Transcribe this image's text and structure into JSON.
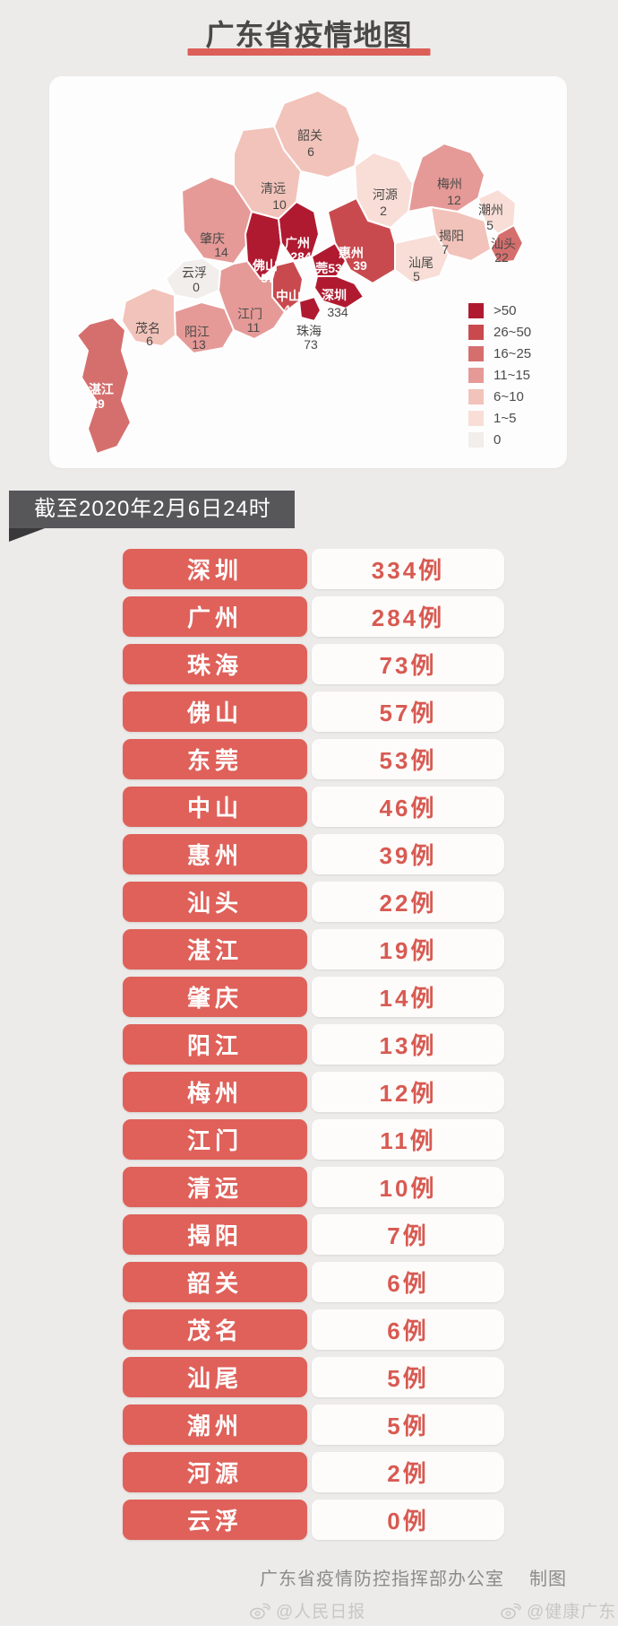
{
  "title": "广东省疫情地图",
  "banner": {
    "text": "截至2020年2月6日24时"
  },
  "map": {
    "legend": [
      {
        "label": ">50",
        "color": "#b01a30"
      },
      {
        "label": "26~50",
        "color": "#c94a4e"
      },
      {
        "label": "16~25",
        "color": "#d56f6e"
      },
      {
        "label": "11~15",
        "color": "#e59a97"
      },
      {
        "label": "6~10",
        "color": "#f2c3ba"
      },
      {
        "label": "1~5",
        "color": "#f8ded7"
      },
      {
        "label": "0",
        "color": "#f1eeeb"
      }
    ],
    "regions": [
      {
        "name": "韶关",
        "value": "6",
        "bucket": "6~10",
        "name_color": "dark",
        "value_color": "dark"
      },
      {
        "name": "清远",
        "value": "10",
        "bucket": "6~10",
        "name_color": "dark",
        "value_color": "dark"
      },
      {
        "name": "肇庆",
        "value": "14",
        "bucket": "11~15",
        "name_color": "dark",
        "value_color": "dark"
      },
      {
        "name": "云浮",
        "value": "0",
        "bucket": "0",
        "name_color": "dark",
        "value_color": "dark"
      },
      {
        "name": "河源",
        "value": "2",
        "bucket": "1~5",
        "name_color": "dark",
        "value_color": "dark"
      },
      {
        "name": "梅州",
        "value": "12",
        "bucket": "11~15",
        "name_color": "dark",
        "value_color": "dark"
      },
      {
        "name": "潮州",
        "value": "5",
        "bucket": "1~5",
        "name_color": "dark",
        "value_color": "dark"
      },
      {
        "name": "汕头",
        "value": "22",
        "bucket": "16~25",
        "name_color": "dark",
        "value_color": "dark"
      },
      {
        "name": "揭阳",
        "value": "7",
        "bucket": "6~10",
        "name_color": "dark",
        "value_color": "dark"
      },
      {
        "name": "汕尾",
        "value": "5",
        "bucket": "1~5",
        "name_color": "dark",
        "value_color": "dark"
      },
      {
        "name": "惠州",
        "value": "39",
        "bucket": "26~50",
        "name_color": "white",
        "value_color": "white"
      },
      {
        "name": "茂名",
        "value": "6",
        "bucket": "6~10",
        "name_color": "dark",
        "value_color": "dark"
      },
      {
        "name": "阳江",
        "value": "13",
        "bucket": "11~15",
        "name_color": "dark",
        "value_color": "dark"
      },
      {
        "name": "湛江",
        "value": "19",
        "bucket": "16~25",
        "name_color": "white",
        "value_color": "white"
      },
      {
        "name": "江门",
        "value": "11",
        "bucket": "11~15",
        "name_color": "dark",
        "value_color": "dark"
      },
      {
        "name": "佛山",
        "value": "57",
        "bucket": ">50",
        "name_color": "white",
        "value_color": "white"
      },
      {
        "name": "广州",
        "value": "284",
        "bucket": ">50",
        "name_color": "white",
        "value_color": "white"
      },
      {
        "name": "东莞",
        "value": "53",
        "bucket": ">50",
        "name_color": "white",
        "value_color": "white"
      },
      {
        "name": "中山",
        "value": "46",
        "bucket": "26~50",
        "name_color": "white",
        "value_color": "white"
      },
      {
        "name": "深圳",
        "value": "334",
        "bucket": ">50",
        "name_color": "white",
        "value_color": "dark"
      },
      {
        "name": "珠海",
        "value": "73",
        "bucket": ">50",
        "name_color": "dark",
        "value_color": "dark"
      }
    ]
  },
  "table": {
    "rows": [
      {
        "city": "深圳",
        "cases": "334例"
      },
      {
        "city": "广州",
        "cases": "284例"
      },
      {
        "city": "珠海",
        "cases": "73例"
      },
      {
        "city": "佛山",
        "cases": "57例"
      },
      {
        "city": "东莞",
        "cases": "53例"
      },
      {
        "city": "中山",
        "cases": "46例"
      },
      {
        "city": "惠州",
        "cases": "39例"
      },
      {
        "city": "汕头",
        "cases": "22例"
      },
      {
        "city": "湛江",
        "cases": "19例"
      },
      {
        "city": "肇庆",
        "cases": "14例"
      },
      {
        "city": "阳江",
        "cases": "13例"
      },
      {
        "city": "梅州",
        "cases": "12例"
      },
      {
        "city": "江门",
        "cases": "11例"
      },
      {
        "city": "清远",
        "cases": "10例"
      },
      {
        "city": "揭阳",
        "cases": "7例"
      },
      {
        "city": "韶关",
        "cases": "6例"
      },
      {
        "city": "茂名",
        "cases": "6例"
      },
      {
        "city": "汕尾",
        "cases": "5例"
      },
      {
        "city": "潮州",
        "cases": "5例"
      },
      {
        "city": "河源",
        "cases": "2例"
      },
      {
        "city": "云浮",
        "cases": "0例"
      }
    ]
  },
  "footer": {
    "credit": "广东省疫情防控指挥部办公室",
    "suffix": "制图"
  },
  "watermarks": {
    "left": "@人民日报",
    "right": "@健康广东"
  },
  "colors": {
    "background": "#edebe9",
    "accent_red": "#df615a",
    "title_underline": "#dc5f58",
    "banner_bg": "#57575a",
    "text_dark": "#4a4947",
    "value_red": "#d85a52"
  }
}
